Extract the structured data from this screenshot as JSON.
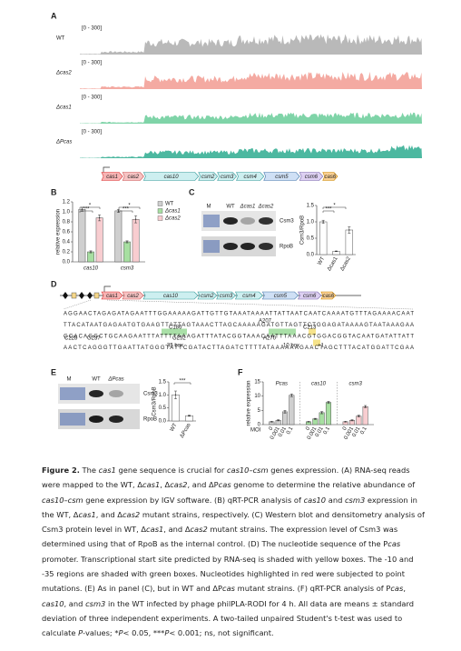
{
  "figure": {
    "panel_a": {
      "label": "A",
      "range": "[0 - 300]",
      "tracks": [
        "WT",
        "Δcas2",
        "Δcas1",
        "ΔPcas"
      ],
      "genes": [
        "cas1",
        "cas2",
        "cas10",
        "csm2",
        "csm3",
        "csm4",
        "csm5",
        "csm6",
        "cas6"
      ]
    },
    "panel_b": {
      "label": "B",
      "ylabel": "relative expression",
      "ylim": [
        0,
        1.2
      ],
      "yticks": [
        {
          "value": 0,
          "label": "0.0"
        },
        0.2,
        0.4,
        0.6,
        0.8,
        {
          "value": 1,
          "label": "1.0"
        },
        1.2
      ],
      "categories": [
        "cas10",
        "csm3"
      ],
      "series": [
        {
          "name": "WT",
          "color": "#cfcfcf",
          "values": [
            1.05,
            1.02
          ],
          "errors": [
            0.04,
            0.03
          ]
        },
        {
          "name": "Δcas1",
          "color": "#a7dfa1",
          "values": [
            0.2,
            0.4
          ],
          "errors": [
            0.02,
            0.02
          ]
        },
        {
          "name": "Δcas2",
          "color": "#f8cdd0",
          "values": [
            0.88,
            0.85
          ],
          "errors": [
            0.06,
            0.07
          ]
        }
      ],
      "annotations": [
        "*",
        "***",
        "*",
        "***"
      ]
    },
    "panel_c": {
      "label": "C",
      "blot_lanes": [
        "M",
        "WT",
        "Δcas1",
        "Δcas2"
      ],
      "blot_bands": [
        "Csm3",
        "RpoB"
      ],
      "ylabel": "Csm3/RpoB",
      "ylim": [
        0,
        1.5
      ],
      "yticks": [
        {
          "value": 0,
          "label": "0.0"
        },
        0.5,
        {
          "value": 1,
          "label": "1.0"
        },
        1.5
      ],
      "categories": [
        "WT",
        "Δcas1",
        "Δcas2"
      ],
      "color": "#ffffff",
      "values": [
        1.0,
        0.1,
        0.75
      ],
      "errors": [
        0.05,
        0.01,
        0.1
      ],
      "annotations": [
        "*",
        "***"
      ]
    },
    "panel_d": {
      "label": "D",
      "genes": [
        "cas1",
        "cas2",
        "cas10",
        "csm2",
        "csm3",
        "csm4",
        "csm5",
        "csm6",
        "cas6"
      ],
      "sequence": [
        "AGGAACTAGAGATAGAATTTGGAAAAAGATTGTTGTAAATAAAATTATTAATCAATCAAAATGTTTAGAAAACAAT",
        "TTACATAATGAGAATGTGAAGTTATTAGTAAACTTAGCAAAAAGATGTTAGTTCTGGAGATAAAAGTAATAAAGAA",
        "GCACAGGCTGCAAGAATTTATTTTAAAGATTTATACGGTAAACAATTTAAACGTGGACGGTACAATGATATTATT",
        "AACTCAGGGTTGAATTATGGGTATTCGATACTTAGATCTTTTATAAAAAAGAACTAGCTTTACATGGATTCGAA"
      ],
      "annotations": [
        "C186",
        "C213",
        "A207",
        "C228",
        "G237",
        "G252",
        "-35 box",
        "A270",
        "-10 box",
        "+1"
      ]
    },
    "panel_e": {
      "label": "E",
      "blot_lanes": [
        "M",
        "WT",
        "ΔPcas"
      ],
      "blot_bands": [
        "Csm3",
        "RpoB"
      ],
      "ylabel": "Csm3/RpoB",
      "ylim": [
        0,
        1.5
      ],
      "yticks": [
        {
          "value": 0,
          "label": "0.0"
        },
        0.5,
        {
          "value": 1,
          "label": "1.0"
        },
        1.5
      ],
      "categories": [
        "WT",
        "ΔPcas"
      ],
      "color": "#ffffff",
      "values": [
        1.0,
        0.2
      ],
      "errors": [
        0.15,
        0.02
      ],
      "annotations": [
        "***"
      ]
    },
    "panel_f": {
      "label": "F",
      "ylabel": "relative expression",
      "xlabel": "MOI",
      "ylim": [
        0,
        15
      ],
      "yticks": [
        0,
        5,
        10,
        15
      ],
      "categories": [
        "0",
        "0.001",
        "0.01",
        "0.1"
      ],
      "series": [
        {
          "name": "Pcas",
          "color": "#cfcfcf",
          "values": [
            1,
            1.5,
            4.5,
            10.3
          ],
          "errors": [
            0.1,
            0.2,
            0.5,
            0.5
          ]
        },
        {
          "name": "cas10",
          "color": "#a7dfa1",
          "values": [
            1,
            2,
            4.2,
            7.8
          ],
          "errors": [
            0.1,
            0.2,
            0.4,
            0.4
          ]
        },
        {
          "name": "csm3",
          "color": "#f8cdd0",
          "values": [
            1,
            1.5,
            3,
            6.3
          ],
          "errors": [
            0.1,
            0.2,
            0.3,
            0.4
          ]
        }
      ]
    }
  },
  "caption": [
    {
      "text": "Figure 2.",
      "bold": true
    },
    {
      "text": " The "
    },
    {
      "text": "cas1",
      "italic": true
    },
    {
      "text": " gene sequence is crucial for "
    },
    {
      "text": "cas10–csm",
      "italic": true
    },
    {
      "text": " genes expression. (A) RNA-seq reads were mapped to the WT, Δ"
    },
    {
      "text": "cas1",
      "italic": true
    },
    {
      "text": ", Δ"
    },
    {
      "text": "cas2",
      "italic": true
    },
    {
      "text": ", and ΔP"
    },
    {
      "text": "cas",
      "italic": true
    },
    {
      "text": " genome to determine the relative abundance of "
    },
    {
      "text": "cas10–csm",
      "italic": true
    },
    {
      "text": " gene expression by IGV software. (B) qRT-PCR analysis of "
    },
    {
      "text": "cas10",
      "italic": true
    },
    {
      "text": " and "
    },
    {
      "text": "csm3",
      "italic": true
    },
    {
      "text": " expression in the WT, Δ"
    },
    {
      "text": "cas1",
      "italic": true
    },
    {
      "text": ", and Δ"
    },
    {
      "text": "cas2",
      "italic": true
    },
    {
      "text": " mutant strains, respectively. (C) Western blot and densitometry analysis of Csm3 protein level in WT, Δ"
    },
    {
      "text": "cas1",
      "italic": true
    },
    {
      "text": ", and Δ"
    },
    {
      "text": "cas2",
      "italic": true
    },
    {
      "text": " mutant strains. The expression level of Csm3 was determined using that of RpoB as the internal control. (D) The nucleotide sequence of the P"
    },
    {
      "text": "cas",
      "italic": true
    },
    {
      "text": " promoter. Transcriptional start site predicted by RNA-seq is shaded with yellow boxes. The -10 and -35 regions are shaded with green boxes. Nucleotides highlighted in red were subjected to point mutations. (E) As in panel (C), but in WT and ΔP"
    },
    {
      "text": "cas",
      "italic": true
    },
    {
      "text": " mutant strains. (F) qRT-PCR analysis of P"
    },
    {
      "text": "cas",
      "italic": true
    },
    {
      "text": ", "
    },
    {
      "text": "cas10",
      "italic": true
    },
    {
      "text": ", and "
    },
    {
      "text": "csm3",
      "italic": true
    },
    {
      "text": " in the WT infected by phage philPLA-RODI for 4 h. All data are means ± standard deviation of three independent experiments. A two-tailed unpaired Student's t-test was used to calculate "
    },
    {
      "text": "P",
      "italic": true
    },
    {
      "text": "-values; *"
    },
    {
      "text": "P",
      "italic": true
    },
    {
      "text": "< 0.05, ***"
    },
    {
      "text": "P",
      "italic": true
    },
    {
      "text": "< 0.001; ns, not significant."
    }
  ]
}
